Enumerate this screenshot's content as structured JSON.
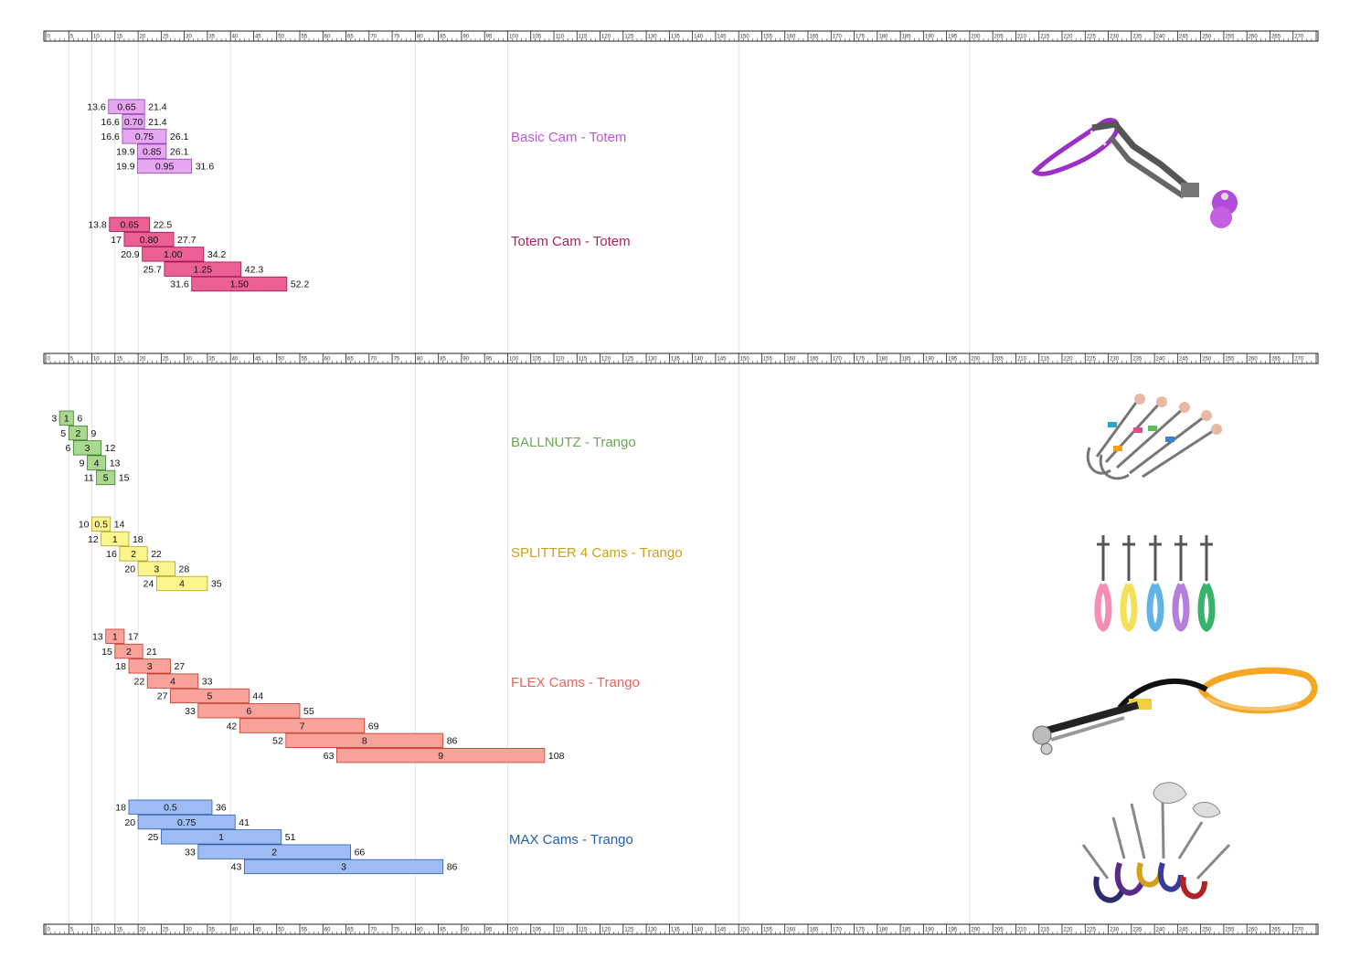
{
  "chart_data": {
    "type": "bar",
    "subtype": "floating-range",
    "xlim": [
      0,
      275
    ],
    "ruler_ticks": [
      0,
      5,
      10,
      15,
      20,
      25,
      30,
      35,
      40,
      45,
      50,
      55,
      60,
      65,
      70,
      75,
      80,
      85,
      90,
      95,
      100,
      105,
      110,
      115,
      120,
      125,
      130,
      135,
      140,
      145,
      150,
      155,
      160,
      165,
      170,
      175,
      180,
      185,
      190,
      195,
      200,
      205,
      210,
      215,
      220,
      225,
      230,
      235,
      240,
      245,
      250,
      255,
      260,
      265,
      270
    ],
    "gridlines": [
      5,
      10,
      15,
      20,
      40,
      80,
      100,
      150,
      200
    ],
    "groups": [
      {
        "title": "Basic Cam -  Totem",
        "color": "#e6a6f2",
        "border": "#8e44ad",
        "title_color": "#c055d6",
        "image": "basic-cam-photo",
        "bars": [
          {
            "label": "0.65",
            "min": 13.6,
            "max": 21.4
          },
          {
            "label": "0.70",
            "min": 16.6,
            "max": 21.4
          },
          {
            "label": "0.75",
            "min": 16.6,
            "max": 26.1
          },
          {
            "label": "0.85",
            "min": 19.9,
            "max": 26.1
          },
          {
            "label": "0.95",
            "min": 19.9,
            "max": 31.6
          }
        ]
      },
      {
        "title": "Totem Cam -  Totem",
        "color": "#ec5f94",
        "border": "#a0124f",
        "title_color": "#a8245d",
        "image": "totem-cam-photo",
        "bars": [
          {
            "label": "0.65",
            "min": 13.8,
            "max": 22.5
          },
          {
            "label": "0.80",
            "min": 17,
            "max": 27.7
          },
          {
            "label": "1.00",
            "min": 20.9,
            "max": 34.2
          },
          {
            "label": "1.25",
            "min": 25.7,
            "max": 42.3
          },
          {
            "label": "1.50",
            "min": 31.6,
            "max": 52.2
          }
        ]
      },
      {
        "title": "BALLNUTZ -  Trango",
        "color": "#a9d88f",
        "border": "#3f7a2a",
        "title_color": "#6aa84f",
        "image": "ballnutz-photo",
        "bars": [
          {
            "label": "1",
            "min": 3,
            "max": 6
          },
          {
            "label": "2",
            "min": 5,
            "max": 9
          },
          {
            "label": "3",
            "min": 6,
            "max": 12
          },
          {
            "label": "4",
            "min": 9,
            "max": 13
          },
          {
            "label": "5",
            "min": 11,
            "max": 15
          }
        ]
      },
      {
        "title": "SPLITTER 4 Cams -  Trango",
        "color": "#fbf58e",
        "border": "#b5a21a",
        "title_color": "#c9a21a",
        "image": "splitter-photo",
        "bars": [
          {
            "label": "0.5",
            "min": 10,
            "max": 14
          },
          {
            "label": "1",
            "min": 12,
            "max": 18
          },
          {
            "label": "2",
            "min": 16,
            "max": 22
          },
          {
            "label": "3",
            "min": 20,
            "max": 28
          },
          {
            "label": "4",
            "min": 24,
            "max": 35
          }
        ]
      },
      {
        "title": "FLEX Cams -  Trango",
        "color": "#f8a29a",
        "border": "#c0392b",
        "title_color": "#e8665a",
        "image": "flex-cam-photo",
        "bars": [
          {
            "label": "1",
            "min": 13,
            "max": 17
          },
          {
            "label": "2",
            "min": 15,
            "max": 21
          },
          {
            "label": "3",
            "min": 18,
            "max": 27
          },
          {
            "label": "4",
            "min": 22,
            "max": 33
          },
          {
            "label": "5",
            "min": 27,
            "max": 44
          },
          {
            "label": "6",
            "min": 33,
            "max": 55
          },
          {
            "label": "7",
            "min": 42,
            "max": 69
          },
          {
            "label": "8",
            "min": 52,
            "max": 86
          },
          {
            "label": "9",
            "min": 63,
            "max": 108
          }
        ]
      },
      {
        "title": "MAX Cams -  Trango",
        "color": "#9dbcf3",
        "border": "#2e5ea8",
        "title_color": "#1f5fb8",
        "image": "max-cam-photo",
        "bars": [
          {
            "label": "0.5",
            "min": 18,
            "max": 36
          },
          {
            "label": "0.75",
            "min": 20,
            "max": 41
          },
          {
            "label": "1",
            "min": 25,
            "max": 51
          },
          {
            "label": "2",
            "min": 33,
            "max": 66
          },
          {
            "label": "3",
            "min": 43,
            "max": 86
          }
        ]
      }
    ]
  }
}
